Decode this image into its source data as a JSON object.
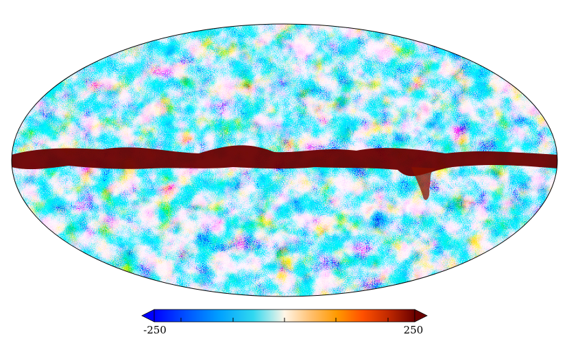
{
  "map": {
    "projection": "mollweide",
    "description_free": true,
    "colormap": [
      "#0000ff",
      "#0072ff",
      "#00b4ff",
      "#52d6f5",
      "#fff4e0",
      "#ffb347",
      "#ff8c00",
      "#ff4500",
      "#b22200",
      "#6b0000"
    ],
    "galactic_band_color": "#6b0000"
  },
  "colorbar": {
    "min_label": "-250",
    "max_label": "250",
    "min": -250,
    "max": 250,
    "extend": "both"
  }
}
